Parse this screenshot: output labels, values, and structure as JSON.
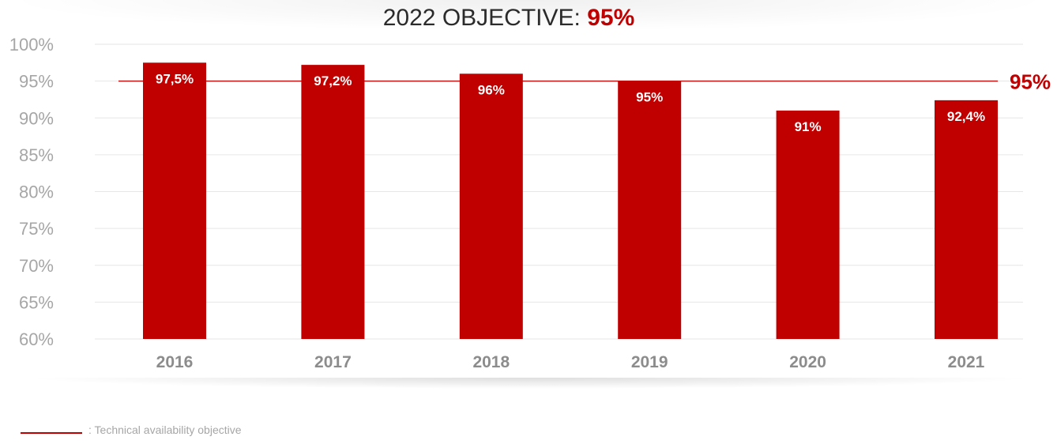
{
  "title": {
    "prefix": "2022 OBJECTIVE: ",
    "value": "95%"
  },
  "objective_label": "95%",
  "legend": {
    "text": ": Technical availability objective"
  },
  "colors": {
    "bar": "#c00000",
    "objective_line": "#c00000",
    "axis_text": "#a6a6a6",
    "category_text": "#8c8c8c",
    "title_text": "#2b2b2b"
  },
  "chart_data": {
    "type": "bar",
    "categories": [
      "2016",
      "2017",
      "2018",
      "2019",
      "2020",
      "2021"
    ],
    "values": [
      97.5,
      97.2,
      96,
      95,
      91,
      92.4
    ],
    "data_labels": [
      "97,5%",
      "97,2%",
      "96%",
      "95%",
      "91%",
      "92,4%"
    ],
    "title": "2022 OBJECTIVE: 95%",
    "xlabel": "",
    "ylabel": "",
    "ylim": [
      60,
      100
    ],
    "y_ticks": [
      60,
      65,
      70,
      75,
      80,
      85,
      90,
      95,
      100
    ],
    "y_tick_labels": [
      "60%",
      "65%",
      "70%",
      "75%",
      "80%",
      "85%",
      "90%",
      "95%",
      "100%"
    ],
    "objective": 95,
    "grid": true,
    "legend_position": "bottom-left"
  }
}
